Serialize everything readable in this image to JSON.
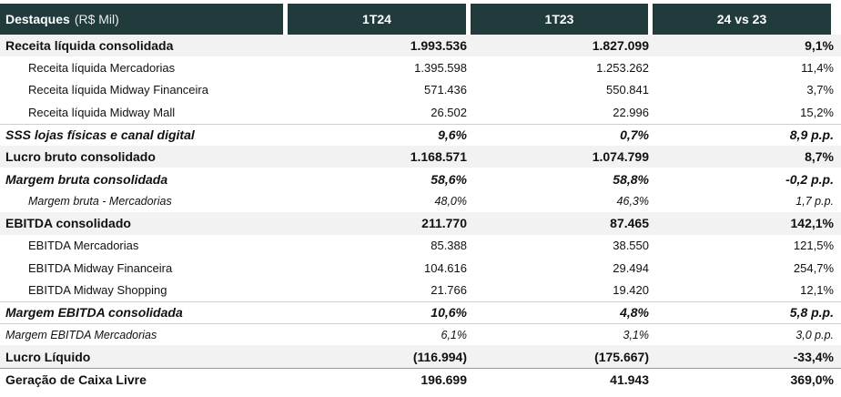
{
  "header": {
    "title": "Destaques",
    "unit": "(R$ Mil)",
    "col1": "1T24",
    "col2": "1T23",
    "col3": "24 vs 23"
  },
  "rows": [
    {
      "label": "Receita líquida consolidada",
      "v1": "1.993.536",
      "v2": "1.827.099",
      "v3": "9,1%"
    },
    {
      "label": "Receita líquida Mercadorias",
      "v1": "1.395.598",
      "v2": "1.253.262",
      "v3": "11,4%"
    },
    {
      "label": "Receita líquida Midway Financeira",
      "v1": "571.436",
      "v2": "550.841",
      "v3": "3,7%"
    },
    {
      "label": "Receita líquida Midway Mall",
      "v1": "26.502",
      "v2": "22.996",
      "v3": "15,2%"
    },
    {
      "label": "SSS lojas físicas e canal digital",
      "v1": "9,6%",
      "v2": "0,7%",
      "v3": "8,9 p.p."
    },
    {
      "label": "Lucro bruto consolidado",
      "v1": "1.168.571",
      "v2": "1.074.799",
      "v3": "8,7%"
    },
    {
      "label": "Margem bruta consolidada",
      "v1": "58,6%",
      "v2": "58,8%",
      "v3": "-0,2 p.p."
    },
    {
      "label": "Margem bruta - Mercadorias",
      "v1": "48,0%",
      "v2": "46,3%",
      "v3": "1,7 p.p."
    },
    {
      "label": "EBITDA consolidado",
      "v1": "211.770",
      "v2": "87.465",
      "v3": "142,1%"
    },
    {
      "label": "EBITDA Mercadorias",
      "v1": "85.388",
      "v2": "38.550",
      "v3": "121,5%"
    },
    {
      "label": "EBITDA Midway Financeira",
      "v1": "104.616",
      "v2": "29.494",
      "v3": "254,7%"
    },
    {
      "label": "EBITDA Midway Shopping",
      "v1": "21.766",
      "v2": "19.420",
      "v3": "12,1%"
    },
    {
      "label": "Margem EBITDA consolidada",
      "v1": "10,6%",
      "v2": "4,8%",
      "v3": "5,8 p.p."
    },
    {
      "label": "Margem EBITDA Mercadorias",
      "v1": "6,1%",
      "v2": "3,1%",
      "v3": "3,0 p.p."
    },
    {
      "label": "Lucro Líquido",
      "v1": "(116.994)",
      "v2": "(175.667)",
      "v3": "-33,4%"
    },
    {
      "label": "Geração de Caixa Livre",
      "v1": "196.699",
      "v2": "41.943",
      "v3": "369,0%"
    }
  ]
}
